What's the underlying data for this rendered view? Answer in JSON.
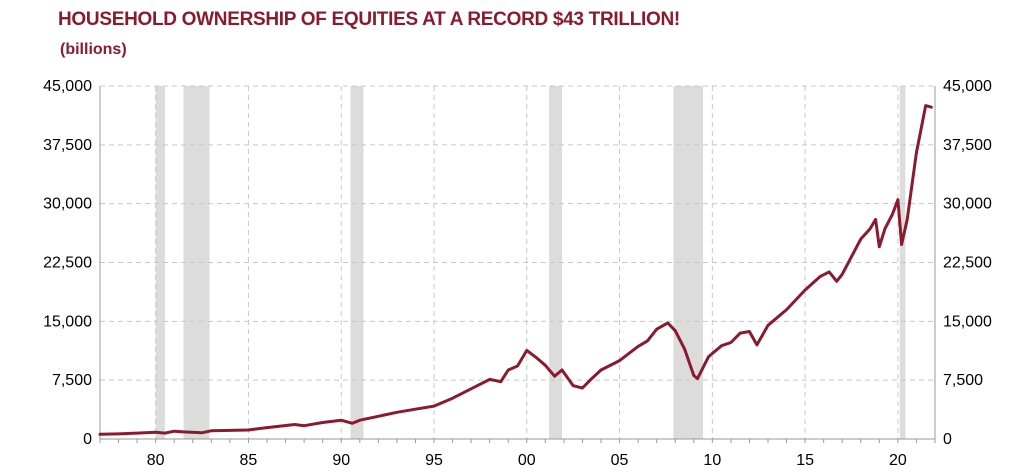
{
  "header": {
    "title": "HOUSEHOLD OWNERSHIP OF EQUITIES AT A RECORD $43 TRILLION!",
    "subtitle": "(billions)"
  },
  "colors": {
    "title": "#8b1a2e",
    "line": "#8b1a2e",
    "recession": "#dcdcdc",
    "grid": "#c8c8c8"
  },
  "chart_data": {
    "type": "line",
    "title": "HOUSEHOLD OWNERSHIP OF EQUITIES AT A RECORD $43 TRILLION!",
    "ylabel": "(billions)",
    "xlim": [
      1977,
      2022
    ],
    "ylim": [
      0,
      45000
    ],
    "grid": true,
    "x_ticks": [
      {
        "x": 1980,
        "label": "80"
      },
      {
        "x": 1985,
        "label": "85"
      },
      {
        "x": 1990,
        "label": "90"
      },
      {
        "x": 1995,
        "label": "95"
      },
      {
        "x": 2000,
        "label": "00"
      },
      {
        "x": 2005,
        "label": "05"
      },
      {
        "x": 2010,
        "label": "10"
      },
      {
        "x": 2015,
        "label": "15"
      },
      {
        "x": 2020,
        "label": "20"
      }
    ],
    "y_ticks": [
      {
        "y": 0,
        "label": "0"
      },
      {
        "y": 7500,
        "label": "7,500"
      },
      {
        "y": 15000,
        "label": "15,000"
      },
      {
        "y": 22500,
        "label": "22,500"
      },
      {
        "y": 30000,
        "label": "30,000"
      },
      {
        "y": 37500,
        "label": "37,500"
      },
      {
        "y": 45000,
        "label": "45,000"
      }
    ],
    "recessions": [
      [
        1980.0,
        1980.5
      ],
      [
        1981.5,
        1982.9
      ],
      [
        1990.5,
        1991.2
      ],
      [
        2001.2,
        2001.9
      ],
      [
        2007.9,
        2009.5
      ],
      [
        2020.1,
        2020.4
      ]
    ],
    "series": [
      {
        "values": [
          [
            1977.0,
            600
          ],
          [
            1978.0,
            650
          ],
          [
            1979.0,
            750
          ],
          [
            1980.0,
            850
          ],
          [
            1980.5,
            750
          ],
          [
            1981.0,
            1000
          ],
          [
            1981.5,
            900
          ],
          [
            1982.5,
            800
          ],
          [
            1983.0,
            1050
          ],
          [
            1984.0,
            1100
          ],
          [
            1985.0,
            1150
          ],
          [
            1986.0,
            1450
          ],
          [
            1987.5,
            1850
          ],
          [
            1988.0,
            1700
          ],
          [
            1989.0,
            2100
          ],
          [
            1990.0,
            2400
          ],
          [
            1990.6,
            2000
          ],
          [
            1991.0,
            2400
          ],
          [
            1992.0,
            2900
          ],
          [
            1993.0,
            3400
          ],
          [
            1994.0,
            3800
          ],
          [
            1995.0,
            4200
          ],
          [
            1996.0,
            5200
          ],
          [
            1997.0,
            6400
          ],
          [
            1998.0,
            7600
          ],
          [
            1998.6,
            7300
          ],
          [
            1999.0,
            8800
          ],
          [
            1999.5,
            9300
          ],
          [
            2000.0,
            11300
          ],
          [
            2000.5,
            10400
          ],
          [
            2001.0,
            9400
          ],
          [
            2001.5,
            8000
          ],
          [
            2001.9,
            8800
          ],
          [
            2002.5,
            6800
          ],
          [
            2003.0,
            6500
          ],
          [
            2003.5,
            7700
          ],
          [
            2004.0,
            8800
          ],
          [
            2005.0,
            10000
          ],
          [
            2006.0,
            11800
          ],
          [
            2006.5,
            12500
          ],
          [
            2007.0,
            14000
          ],
          [
            2007.6,
            14800
          ],
          [
            2008.0,
            13800
          ],
          [
            2008.5,
            11500
          ],
          [
            2009.0,
            8100
          ],
          [
            2009.2,
            7700
          ],
          [
            2009.8,
            10500
          ],
          [
            2010.5,
            11900
          ],
          [
            2011.0,
            12300
          ],
          [
            2011.5,
            13500
          ],
          [
            2012.0,
            13700
          ],
          [
            2012.4,
            12000
          ],
          [
            2013.0,
            14500
          ],
          [
            2014.0,
            16500
          ],
          [
            2015.0,
            19000
          ],
          [
            2015.8,
            20700
          ],
          [
            2016.3,
            21300
          ],
          [
            2016.7,
            20100
          ],
          [
            2017.0,
            21000
          ],
          [
            2018.0,
            25500
          ],
          [
            2018.5,
            26800
          ],
          [
            2018.8,
            28000
          ],
          [
            2019.0,
            24500
          ],
          [
            2019.3,
            26800
          ],
          [
            2019.7,
            28600
          ],
          [
            2020.0,
            30500
          ],
          [
            2020.2,
            24800
          ],
          [
            2020.5,
            28000
          ],
          [
            2021.0,
            36500
          ],
          [
            2021.5,
            42500
          ],
          [
            2021.8,
            42300
          ]
        ]
      }
    ]
  }
}
